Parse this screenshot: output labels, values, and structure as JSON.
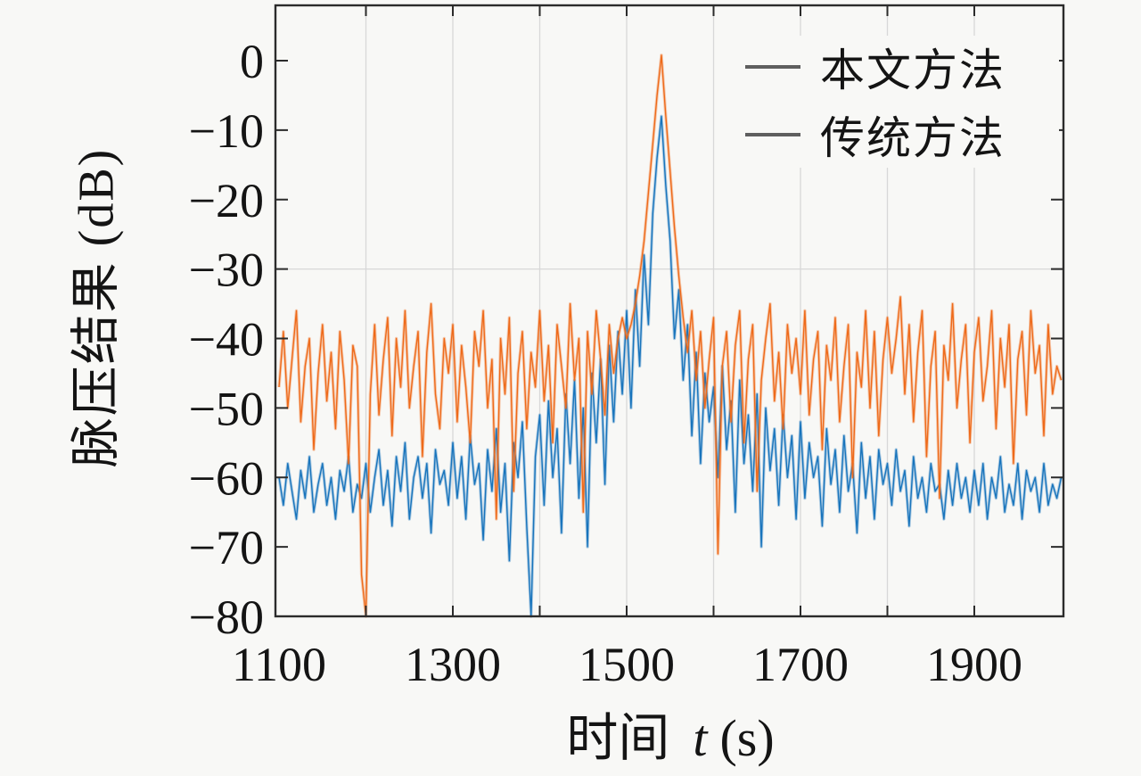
{
  "chart_data": {
    "type": "line",
    "title": "",
    "xlabel": "时间 t (s)",
    "xlabel_parts": {
      "prefix": "时间",
      "variable": "t",
      "unit": "(s)"
    },
    "ylabel": "脉压结果 (dB)",
    "xlim": [
      1100,
      2000
    ],
    "ylim": [
      -80,
      8
    ],
    "xtick_labeled": [
      {
        "value": 1100,
        "label": "1100"
      },
      {
        "value": 1300,
        "label": "1300"
      },
      {
        "value": 1500,
        "label": "1500"
      },
      {
        "value": 1700,
        "label": "1700"
      },
      {
        "value": 1900,
        "label": "1900"
      }
    ],
    "xtick_minor_values": [
      1200,
      1300,
      1400,
      1500,
      1600,
      1700,
      1800,
      1900
    ],
    "ytick_labeled": [
      {
        "value": 0,
        "label": "0"
      },
      {
        "value": -10,
        "label": "−10"
      },
      {
        "value": -20,
        "label": "−20"
      },
      {
        "value": -30,
        "label": "−30"
      },
      {
        "value": -40,
        "label": "−40"
      },
      {
        "value": -50,
        "label": "−50"
      },
      {
        "value": -60,
        "label": "−60"
      },
      {
        "value": -70,
        "label": "−70"
      },
      {
        "value": -80,
        "label": "−80"
      }
    ],
    "grid": {
      "x_gridlines": [
        1200,
        1300,
        1400,
        1500,
        1600,
        1700,
        1800,
        1900
      ],
      "y_gridlines": [
        -30
      ],
      "color": "#d8d8d8"
    },
    "legend": {
      "position": "top-right",
      "entries": [
        {
          "label": "本文方法",
          "swatch_color": "#5f5f5f",
          "series": "proposed"
        },
        {
          "label": "传统方法",
          "swatch_color": "#5f5f5f",
          "series": "traditional"
        }
      ]
    },
    "peak": {
      "t": 1540,
      "dB": 0.8
    },
    "series": [
      {
        "id": "proposed",
        "name": "本文方法",
        "color": "#1874bc",
        "t_start": 1100,
        "t_step": 5,
        "values_dB": [
          -60,
          -64,
          -58,
          -62,
          -66,
          -59,
          -63,
          -57,
          -65,
          -61,
          -58,
          -64,
          -60,
          -66,
          -59,
          -62,
          -57,
          -65,
          -61,
          -63,
          -58,
          -65,
          -60,
          -56,
          -64,
          -59,
          -67,
          -57,
          -62,
          -55,
          -66,
          -60,
          -57,
          -63,
          -58,
          -68,
          -56,
          -61,
          -59,
          -64,
          -55,
          -63,
          -57,
          -66,
          -54,
          -61,
          -58,
          -69,
          -56,
          -62,
          -53,
          -65,
          -58,
          -72,
          -55,
          -60,
          -52,
          -67,
          -80,
          -57,
          -51,
          -64,
          -49,
          -60,
          -53,
          -68,
          -48,
          -58,
          -46,
          -63,
          -50,
          -70,
          -45,
          -55,
          -43,
          -61,
          -41,
          -52,
          -39,
          -48,
          -36,
          -50,
          -33,
          -44,
          -28,
          -38,
          -22,
          -14,
          -8,
          -18,
          -26,
          -40,
          -33,
          -46,
          -38,
          -54,
          -42,
          -58,
          -45,
          -52,
          -47,
          -60,
          -44,
          -56,
          -49,
          -65,
          -46,
          -58,
          -51,
          -62,
          -48,
          -70,
          -50,
          -59,
          -53,
          -64,
          -51,
          -60,
          -54,
          -66,
          -52,
          -63,
          -55,
          -60,
          -57,
          -67,
          -53,
          -61,
          -56,
          -65,
          -54,
          -62,
          -58,
          -68,
          -55,
          -63,
          -57,
          -66,
          -56,
          -61,
          -58,
          -64,
          -56,
          -62,
          -59,
          -67,
          -57,
          -63,
          -60,
          -65,
          -58,
          -62,
          -61,
          -66,
          -59,
          -64,
          -58,
          -63,
          -60,
          -65,
          -59,
          -64,
          -58,
          -66,
          -60,
          -63,
          -57,
          -65,
          -61,
          -64,
          -58,
          -66,
          -59,
          -62,
          -60,
          -65,
          -58,
          -64,
          -61,
          -63,
          -60
        ]
      },
      {
        "id": "traditional",
        "name": "传统方法",
        "color": "#ee6a1a",
        "t_start": 1100,
        "t_step": 5,
        "values_dB": [
          -47,
          -39,
          -50,
          -43,
          -36,
          -52,
          -44,
          -40,
          -56,
          -45,
          -38,
          -49,
          -42,
          -53,
          -39,
          -46,
          -58,
          -41,
          -44,
          -74,
          -80,
          -48,
          -38,
          -51,
          -43,
          -37,
          -54,
          -40,
          -47,
          -36,
          -50,
          -44,
          -39,
          -57,
          -42,
          -35,
          -48,
          -53,
          -40,
          -45,
          -38,
          -52,
          -41,
          -47,
          -55,
          -39,
          -44,
          -36,
          -50,
          -43,
          -66,
          -40,
          -48,
          -37,
          -62,
          -45,
          -39,
          -53,
          -42,
          -47,
          -36,
          -49,
          -41,
          -55,
          -38,
          -44,
          -50,
          -35,
          -46,
          -40,
          -65,
          -39,
          -48,
          -36,
          -43,
          -51,
          -38,
          -45,
          -40,
          -37,
          -40,
          -38,
          -35,
          -31,
          -26,
          -19,
          -12,
          -5,
          0.8,
          -8,
          -16,
          -24,
          -31,
          -37,
          -42,
          -36,
          -46,
          -39,
          -50,
          -43,
          -37,
          -71,
          -44,
          -39,
          -52,
          -41,
          -36,
          -55,
          -43,
          -38,
          -62,
          -46,
          -40,
          -35,
          -49,
          -42,
          -53,
          -38,
          -45,
          -40,
          -48,
          -36,
          -51,
          -43,
          -39,
          -56,
          -41,
          -46,
          -37,
          -52,
          -44,
          -38,
          -60,
          -42,
          -47,
          -36,
          -50,
          -39,
          -54,
          -43,
          -37,
          -45,
          -40,
          -34,
          -48,
          -38,
          -52,
          -42,
          -36,
          -57,
          -44,
          -39,
          -63,
          -41,
          -46,
          -35,
          -50,
          -43,
          -38,
          -55,
          -42,
          -37,
          -49,
          -44,
          -36,
          -53,
          -40,
          -47,
          -38,
          -58,
          -43,
          -39,
          -51,
          -36,
          -45,
          -41,
          -54,
          -38,
          -48,
          -44,
          -46
        ]
      }
    ]
  }
}
